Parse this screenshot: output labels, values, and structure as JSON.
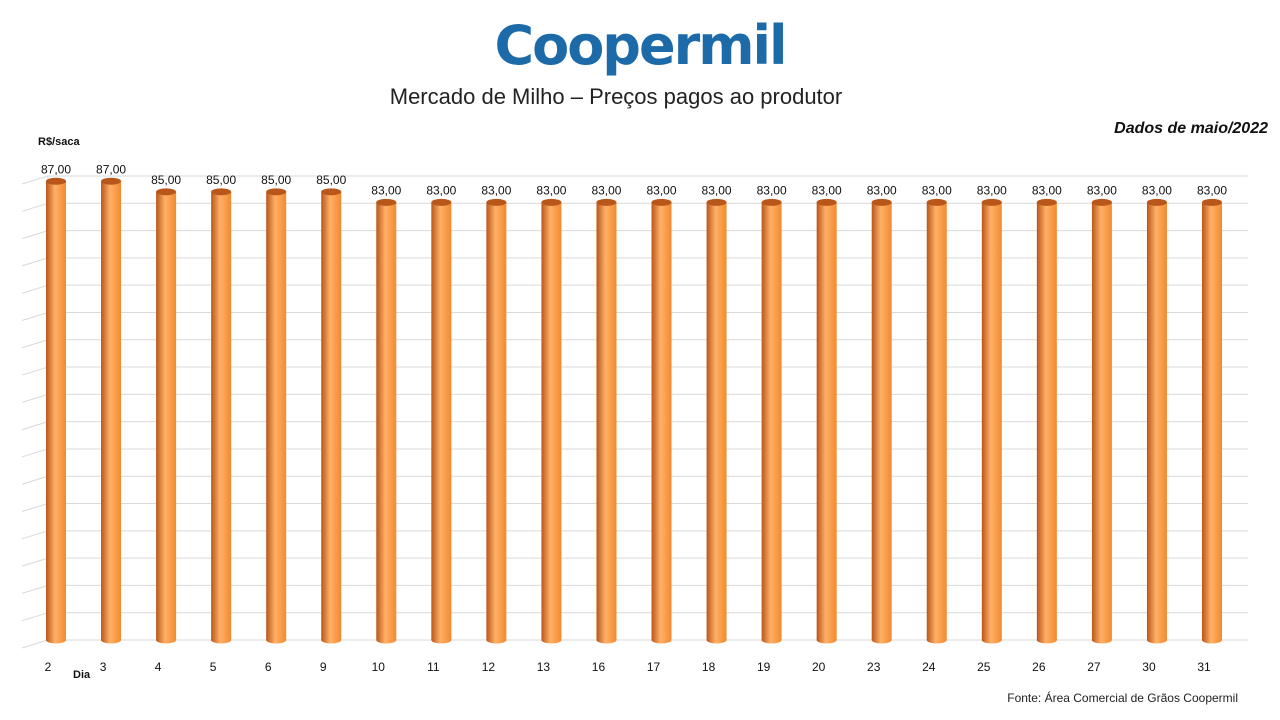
{
  "header": {
    "logo": "Coopermil",
    "title": "Mercado de Milho – Preços pagos ao produtor",
    "subtitle": "Dados de maio/2022"
  },
  "footer": {
    "source": "Fonte:  Área Comercial de Grãos Coopermil"
  },
  "colors": {
    "logo": "#1c6aa8",
    "bar": "#f28a2e",
    "bar_dark": "#b9561a",
    "bar_light": "#ffb067",
    "grid": "#d9d9d9"
  },
  "chart_data": {
    "type": "bar",
    "ylabel": "R$/saca",
    "xlabel": "Dia",
    "categories": [
      "2",
      "3",
      "4",
      "5",
      "6",
      "9",
      "10",
      "11",
      "12",
      "13",
      "16",
      "17",
      "18",
      "19",
      "20",
      "23",
      "24",
      "25",
      "26",
      "27",
      "30",
      "31"
    ],
    "values": [
      87,
      87,
      85,
      85,
      85,
      85,
      83,
      83,
      83,
      83,
      83,
      83,
      83,
      83,
      83,
      83,
      83,
      83,
      83,
      83,
      83,
      83
    ],
    "data_labels": [
      "87,00",
      "87,00",
      "85,00",
      "85,00",
      "85,00",
      "85,00",
      "83,00",
      "83,00",
      "83,00",
      "83,00",
      "83,00",
      "83,00",
      "83,00",
      "83,00",
      "83,00",
      "83,00",
      "83,00",
      "83,00",
      "83,00",
      "83,00",
      "83,00",
      "83,00"
    ],
    "ylim": [
      0,
      88
    ],
    "grid": true,
    "y_tick_labels_shown": false,
    "bar_shape": "cylinder"
  }
}
